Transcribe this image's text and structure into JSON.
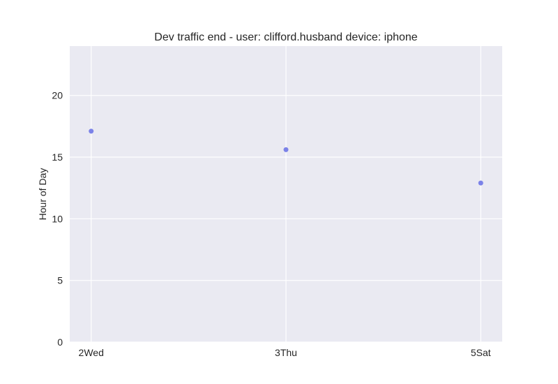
{
  "chart_data": {
    "type": "scatter",
    "title": "Dev traffic end - user: clifford.husband device: iphone",
    "xlabel": "",
    "ylabel": "Hour of Day",
    "categories": [
      "2Wed",
      "3Thu",
      "5Sat"
    ],
    "series": [
      {
        "values": [
          17.1,
          15.6,
          12.9
        ]
      }
    ],
    "ylim": [
      0,
      24
    ],
    "yticks": [
      0,
      5,
      10,
      15,
      20
    ],
    "grid": true,
    "colors": {
      "background": "#eaeaf2",
      "grid": "#ffffff",
      "point": "#7b82e8"
    }
  }
}
